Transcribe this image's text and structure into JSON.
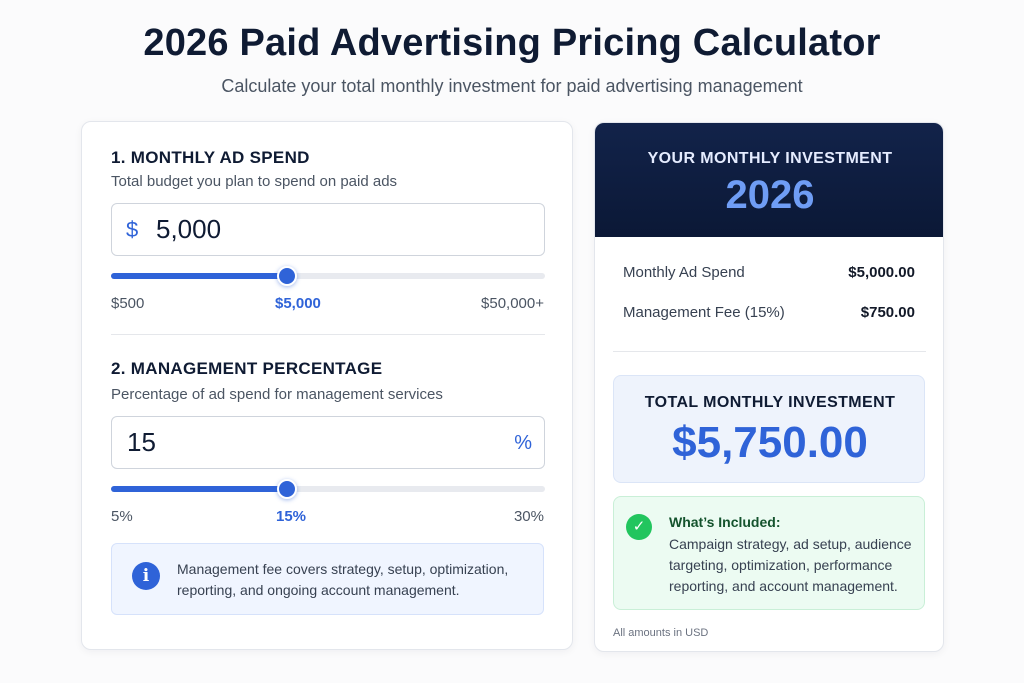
{
  "header": {
    "title": "2026 Paid Advertising Pricing Calculator",
    "subtitle": "Calculate your total monthly investment for paid advertising management"
  },
  "ad_spend": {
    "title": "1.  MONTHLY AD SPEND",
    "description": "Total budget you plan to spend on paid ads",
    "currency_symbol": "$",
    "value": "5,000",
    "slider_min_label": "$500",
    "slider_current_label": "$5,000",
    "slider_max_label": "$50,000+",
    "slider_fraction": 0.4
  },
  "management": {
    "title": "2.  MANAGEMENT PERCENTAGE",
    "description": "Percentage of ad spend for management services",
    "value": "15",
    "unit": "%",
    "slider_min_label": "5%",
    "slider_current_label": "15%",
    "slider_max_label": "30%",
    "slider_fraction": 0.4
  },
  "info": {
    "icon": "info-icon",
    "text": "Management fee covers strategy, setup, optimization, reporting, and ongoing account management."
  },
  "summary": {
    "header_label": "YOUR MONTHLY INVESTMENT",
    "header_value": "2026",
    "rows": [
      {
        "label": "Monthly Ad Spend",
        "value": "$5,000.00"
      },
      {
        "label": "Management Fee (15%)",
        "value": "$750.00"
      }
    ],
    "total_label": "TOTAL MONTHLY INVESTMENT",
    "total_value": "$5,750.00",
    "included_icon": "check-circle-icon",
    "included_title": "What’s Included:",
    "included_text": "Campaign strategy, ad setup, audience targeting, optimization, performance reporting, and account management.",
    "footnote": "All amounts in USD"
  },
  "colors": {
    "accent": "#2f63d8",
    "header_bg": "#0f1f44",
    "success": "#22c55e",
    "title": "#0f1b33"
  }
}
